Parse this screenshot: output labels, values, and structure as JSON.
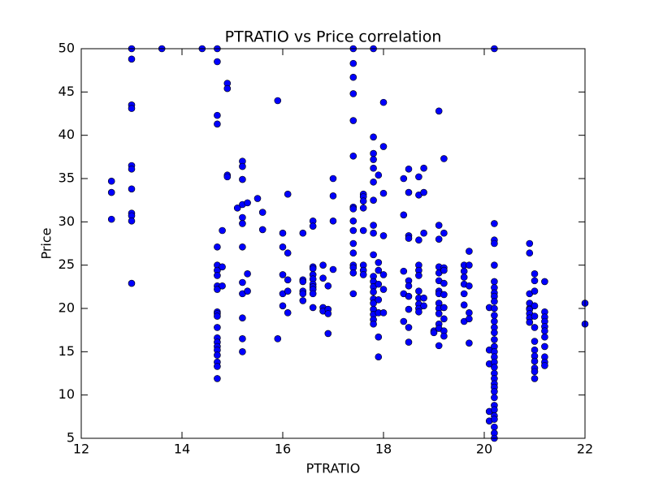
{
  "chart_data": {
    "type": "scatter",
    "title": "PTRATIO vs Price correlation",
    "x_label": "PTRATIO",
    "y_label": "Price",
    "color": "#0000ff",
    "x": [
      12.6,
      12.6,
      12.6,
      13.0,
      13.0,
      13.0,
      13.0,
      13.0,
      13.0,
      13.0,
      13.0,
      13.0,
      13.0,
      13.0,
      13.6,
      14.4,
      14.7,
      14.7,
      14.7,
      14.7,
      14.7,
      14.7,
      14.7,
      14.7,
      14.7,
      14.7,
      14.7,
      14.7,
      14.7,
      14.7,
      14.7,
      14.7,
      14.7,
      14.7,
      14.7,
      14.7,
      14.7,
      14.7,
      14.8,
      14.8,
      14.8,
      14.9,
      14.9,
      14.9,
      14.9,
      15.1,
      15.2,
      15.2,
      15.2,
      15.2,
      15.2,
      15.2,
      15.2,
      15.2,
      15.2,
      15.2,
      15.2,
      15.2,
      15.3,
      15.3,
      15.3,
      15.5,
      15.6,
      15.6,
      15.9,
      15.9,
      16.0,
      16.0,
      16.0,
      16.0,
      16.0,
      16.1,
      16.1,
      16.1,
      16.1,
      16.1,
      16.4,
      16.4,
      16.4,
      16.4,
      16.4,
      16.4,
      16.6,
      16.6,
      16.6,
      16.6,
      16.6,
      16.6,
      16.6,
      16.6,
      16.6,
      16.6,
      16.6,
      16.8,
      16.8,
      16.8,
      16.8,
      16.9,
      16.9,
      16.9,
      16.9,
      17.0,
      17.0,
      17.0,
      17.0,
      17.4,
      17.4,
      17.4,
      17.4,
      17.4,
      17.4,
      17.4,
      17.4,
      17.4,
      17.4,
      17.4,
      17.4,
      17.4,
      17.4,
      17.4,
      17.4,
      17.6,
      17.6,
      17.6,
      17.6,
      17.6,
      17.6,
      17.6,
      17.6,
      17.8,
      17.8,
      17.8,
      17.8,
      17.8,
      17.8,
      17.8,
      17.8,
      17.8,
      17.8,
      17.8,
      17.8,
      17.8,
      17.8,
      17.8,
      17.8,
      17.8,
      17.8,
      17.8,
      17.8,
      17.9,
      17.9,
      17.9,
      17.9,
      17.9,
      17.9,
      17.9,
      17.9,
      18.0,
      18.0,
      18.0,
      18.0,
      18.0,
      18.0,
      18.0,
      18.4,
      18.4,
      18.4,
      18.4,
      18.4,
      18.5,
      18.5,
      18.5,
      18.5,
      18.5,
      18.5,
      18.5,
      18.5,
      18.5,
      18.5,
      18.7,
      18.7,
      18.7,
      18.7,
      18.7,
      18.7,
      18.7,
      18.7,
      18.7,
      18.7,
      18.7,
      18.8,
      18.8,
      18.8,
      18.8,
      18.8,
      19.0,
      19.0,
      19.1,
      19.1,
      19.1,
      19.1,
      19.1,
      19.1,
      19.1,
      19.1,
      19.1,
      19.1,
      19.1,
      19.1,
      19.1,
      19.1,
      19.2,
      19.2,
      19.2,
      19.2,
      19.2,
      19.2,
      19.2,
      19.2,
      19.2,
      19.2,
      19.6,
      19.6,
      19.6,
      19.6,
      19.6,
      19.6,
      19.6,
      19.7,
      19.7,
      19.7,
      19.7,
      19.7,
      19.7,
      20.1,
      20.1,
      20.1,
      20.1,
      20.1,
      20.2,
      20.2,
      20.2,
      20.2,
      20.2,
      20.2,
      20.2,
      20.2,
      20.2,
      20.2,
      20.2,
      20.2,
      20.2,
      20.2,
      20.2,
      20.2,
      20.2,
      20.2,
      20.2,
      20.2,
      20.2,
      20.2,
      20.2,
      20.2,
      20.2,
      20.2,
      20.2,
      20.2,
      20.2,
      20.2,
      20.2,
      20.2,
      20.2,
      20.2,
      20.9,
      20.9,
      20.9,
      20.9,
      20.9,
      20.9,
      20.9,
      20.9,
      20.9,
      21.0,
      21.0,
      21.0,
      21.0,
      21.0,
      21.0,
      21.0,
      21.0,
      21.0,
      21.0,
      21.0,
      21.0,
      21.0,
      21.2,
      21.2,
      21.2,
      21.2,
      21.2,
      21.2,
      21.2,
      21.2,
      21.2,
      21.2,
      21.2,
      22.0,
      22.0
    ],
    "values": [
      34.7,
      33.4,
      30.3,
      50,
      48.8,
      43.5,
      43.1,
      36.5,
      36.1,
      33.8,
      31,
      30.7,
      30.1,
      22.9,
      50,
      50,
      50,
      48.5,
      42.3,
      41.3,
      27.1,
      25,
      24.4,
      23.8,
      22.6,
      22.2,
      19.6,
      19.4,
      19.1,
      17.8,
      16.6,
      16.1,
      15.6,
      15.2,
      14.6,
      13.8,
      13.3,
      11.9,
      29,
      24.8,
      22.6,
      46,
      45.4,
      35.4,
      35.2,
      31.6,
      37,
      36.4,
      34.9,
      32,
      30.5,
      29.8,
      27.1,
      23,
      21.7,
      18.9,
      16.5,
      15,
      32.2,
      24,
      22,
      32.7,
      31.1,
      29.1,
      44,
      16.5,
      28.7,
      27.1,
      23.9,
      21.7,
      20.3,
      33.2,
      26.4,
      23.3,
      22,
      19.5,
      28.7,
      23.3,
      23.1,
      22,
      21.7,
      20.9,
      30.1,
      29.5,
      24.8,
      24.6,
      23.9,
      23.4,
      22.8,
      22.5,
      22.2,
      21.7,
      20.1,
      25,
      23.5,
      20.1,
      19.7,
      22.6,
      19.9,
      19.4,
      17.1,
      35,
      33,
      30.1,
      24.5,
      50,
      48.3,
      46.7,
      44.8,
      41.7,
      37.6,
      31.7,
      31.5,
      30.1,
      29,
      27.5,
      26.4,
      25,
      24.7,
      24.1,
      21.7,
      33.2,
      32.9,
      32.4,
      31.6,
      29,
      25,
      24.4,
      23.9,
      50,
      39.8,
      37.9,
      37.2,
      36.2,
      34.6,
      32.5,
      29.6,
      28.7,
      26.2,
      23.7,
      23.1,
      22.5,
      21.9,
      21.1,
      20.6,
      19.9,
      19.3,
      18.7,
      18.2,
      35.4,
      25.3,
      24.4,
      22.8,
      21,
      19.5,
      16.7,
      14.4,
      43.8,
      38.7,
      33.3,
      28.4,
      23.9,
      22.2,
      19.5,
      35,
      30.8,
      24.3,
      21.7,
      18.5,
      36.1,
      33.4,
      28.4,
      28.1,
      23.2,
      22.6,
      21.4,
      19.9,
      17.8,
      16.1,
      35.2,
      33.1,
      27.9,
      25,
      24.4,
      23.8,
      22,
      21.2,
      20.5,
      20,
      19.6,
      36.2,
      33.4,
      28.7,
      21.2,
      20.3,
      17.4,
      17.2,
      42.8,
      29.6,
      28,
      24.8,
      24.1,
      23.2,
      22,
      21.7,
      20.6,
      20,
      19.4,
      18.2,
      17.7,
      15.7,
      37.3,
      28.7,
      24.7,
      24.4,
      22.9,
      21.6,
      20.1,
      18.8,
      17.4,
      16.8,
      25,
      24.3,
      23.6,
      22.8,
      21.7,
      20.4,
      18.5,
      26.6,
      25,
      22.6,
      19.5,
      18.8,
      16,
      20.1,
      15.2,
      13.6,
      8.1,
      7,
      50,
      29.8,
      27.9,
      27.5,
      25,
      23.1,
      22.4,
      21.8,
      21.4,
      20.8,
      20,
      19.2,
      18.5,
      17.8,
      17.2,
      16.4,
      15.6,
      15,
      14.4,
      13.8,
      13.2,
      12.5,
      11.9,
      11.3,
      10.9,
      10.4,
      9.7,
      8.8,
      8.3,
      7.6,
      7.2,
      6.3,
      5.6,
      5,
      27.5,
      26.4,
      21.7,
      20.6,
      20,
      19.9,
      19.4,
      18.9,
      18.4,
      24,
      23.2,
      22,
      20.3,
      19.1,
      17.8,
      16.2,
      15.2,
      14.5,
      13.9,
      13.1,
      12.7,
      11.9,
      19.6,
      19,
      18.5,
      17.9,
      17.4,
      16.7,
      15.6,
      14.4,
      13.8,
      13.4,
      23.1,
      20.6,
      18.2
    ],
    "xlim": [
      12,
      22
    ],
    "xticks": [
      12,
      14,
      16,
      18,
      20,
      22
    ],
    "ylim": [
      5,
      50
    ],
    "yticks": [
      5,
      10,
      15,
      20,
      25,
      30,
      35,
      40,
      45,
      50
    ]
  }
}
